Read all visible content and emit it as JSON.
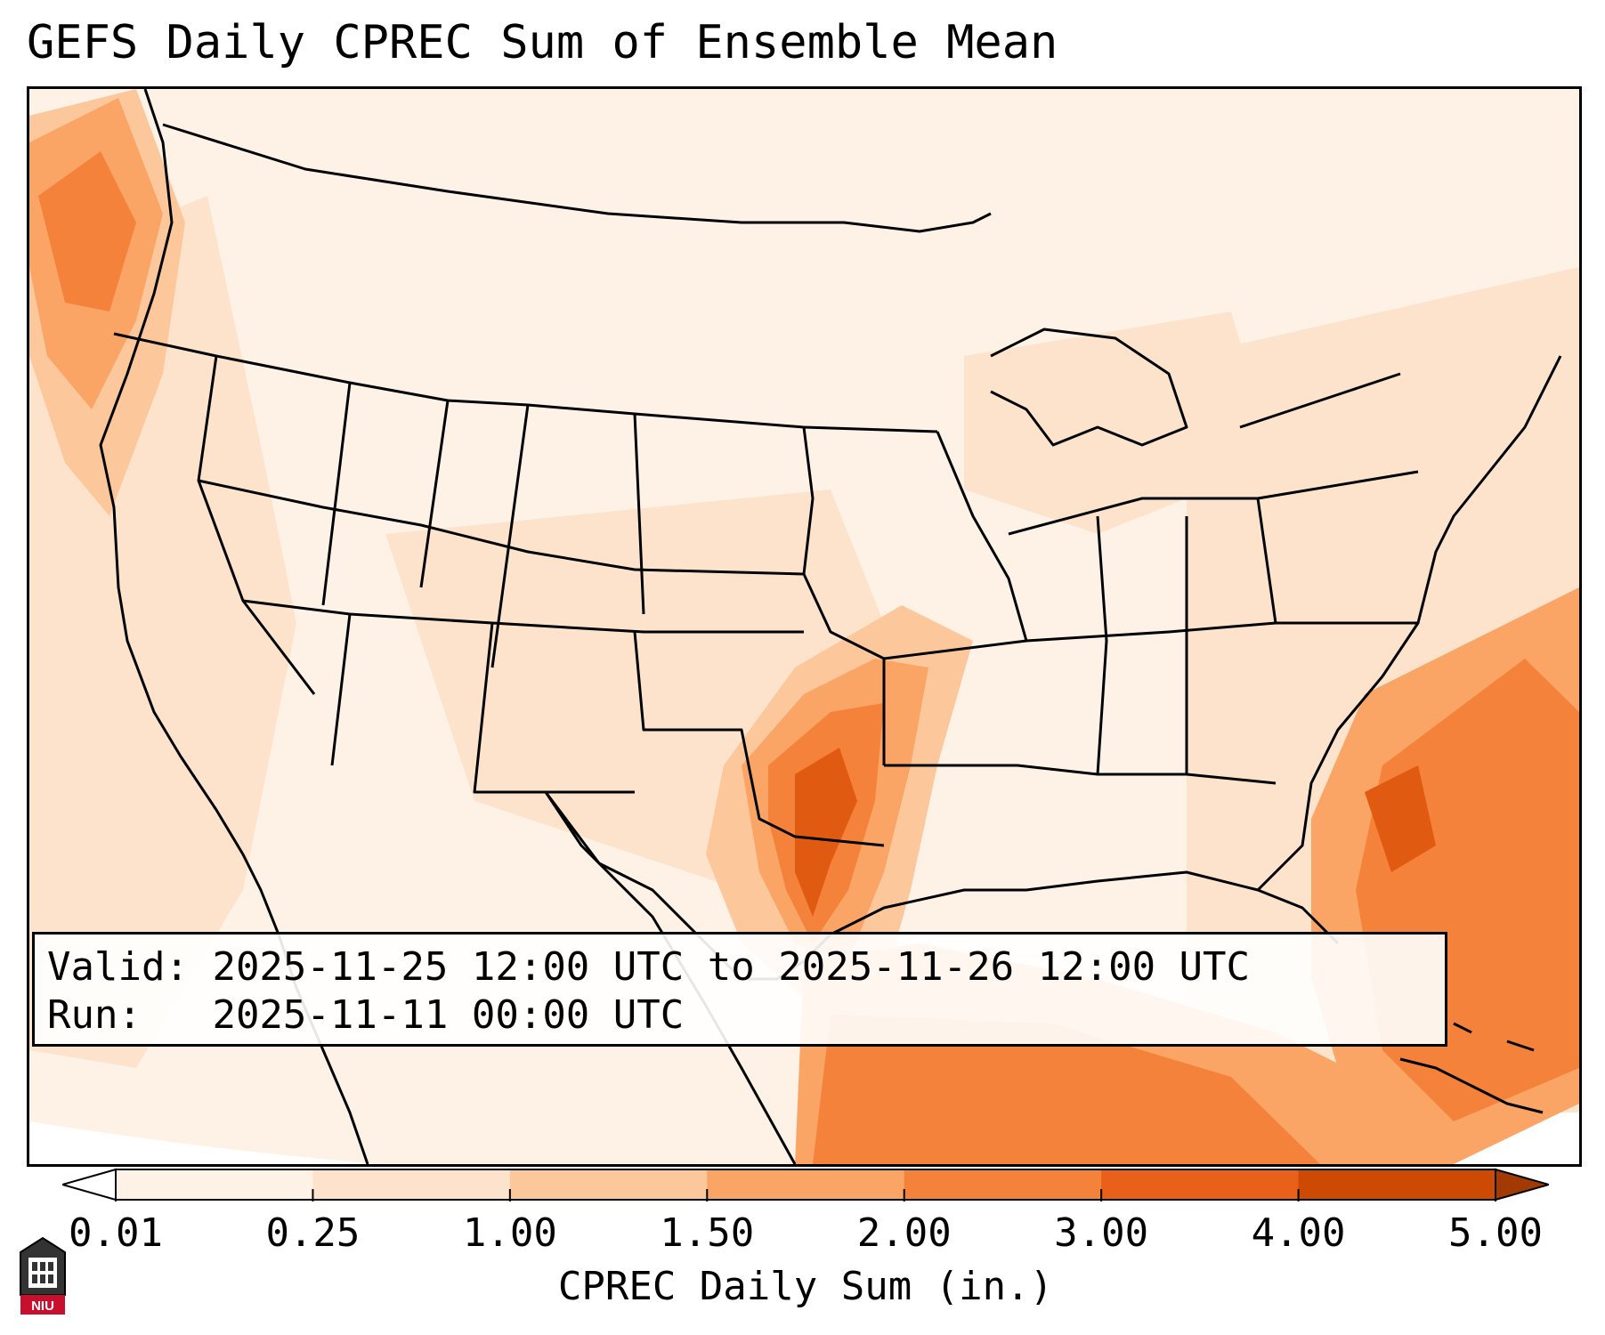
{
  "title": "GEFS Daily CPREC Sum of Ensemble Mean",
  "info": {
    "valid_label": "Valid:",
    "valid_value": "2025-11-25 12:00 UTC to 2025-11-26 12:00 UTC",
    "run_label": "Run:",
    "run_value": "2025-11-11 00:00 UTC"
  },
  "colorbar": {
    "label": "CPREC Daily Sum (in.)",
    "ticks": [
      "0.01",
      "0.25",
      "1.00",
      "1.50",
      "2.00",
      "3.00",
      "4.00",
      "5.00"
    ],
    "colors": [
      "#fef2e6",
      "#fde3cc",
      "#fdc79c",
      "#faa565",
      "#f5823a",
      "#e8601a",
      "#cc4a04",
      "#a33a04"
    ],
    "extend": "both"
  },
  "logo": {
    "text": "NIU",
    "color": "#c8102e"
  },
  "precip_colors": {
    "trace": "#fef2e6",
    "light": "#fde3cc",
    "moderate": "#fdc79c",
    "heavy": "#f5823a",
    "very_heavy": "#e05a12"
  }
}
